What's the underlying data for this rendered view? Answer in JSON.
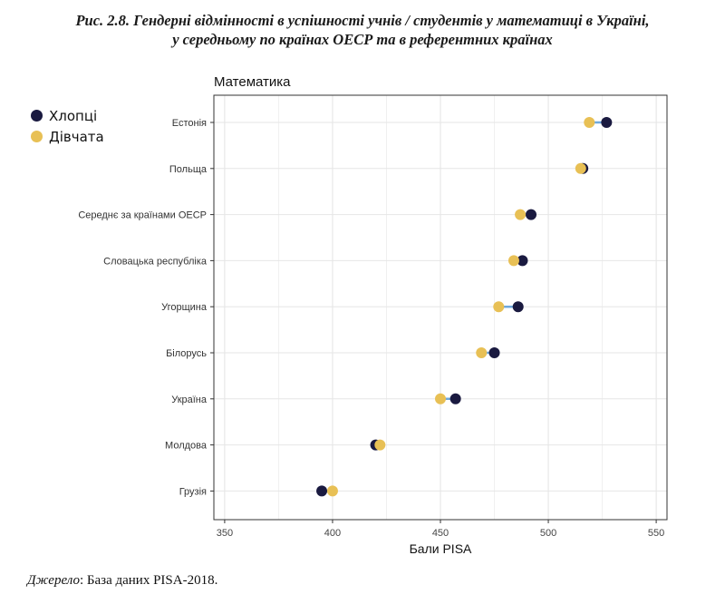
{
  "figure": {
    "title_line1": "Рис. 2.8. Гендерні відмінності в успішності учнів / студентів у математиці в Україні,",
    "title_line2": "у середньому по країнах ОЕСР та в референтних країнах"
  },
  "source": {
    "label": "Джерело",
    "text": ": База даних PISA-2018."
  },
  "chart_data": {
    "type": "scatter",
    "title": "Математика",
    "xlabel": "Бали PISA",
    "ylabel": "",
    "xlim": [
      345,
      555
    ],
    "xticks": [
      350,
      400,
      450,
      500,
      550
    ],
    "grid": true,
    "legend_position": "top-left (outside)",
    "categories": [
      "Естонія",
      "Польща",
      "Середнє за країнами ОЕСР",
      "Словацька республіка",
      "Угорщина",
      "Білорусь",
      "Україна",
      "Молдова",
      "Грузія"
    ],
    "series": [
      {
        "name": "Хлопці",
        "color": "#1a1a40",
        "values": [
          527,
          516,
          492,
          488,
          486,
          475,
          457,
          420,
          395
        ]
      },
      {
        "name": "Дівчата",
        "color": "#e8c055",
        "values": [
          519,
          515,
          487,
          484,
          477,
          469,
          450,
          422,
          400
        ]
      }
    ],
    "connector_color": "#6fa8dc"
  }
}
